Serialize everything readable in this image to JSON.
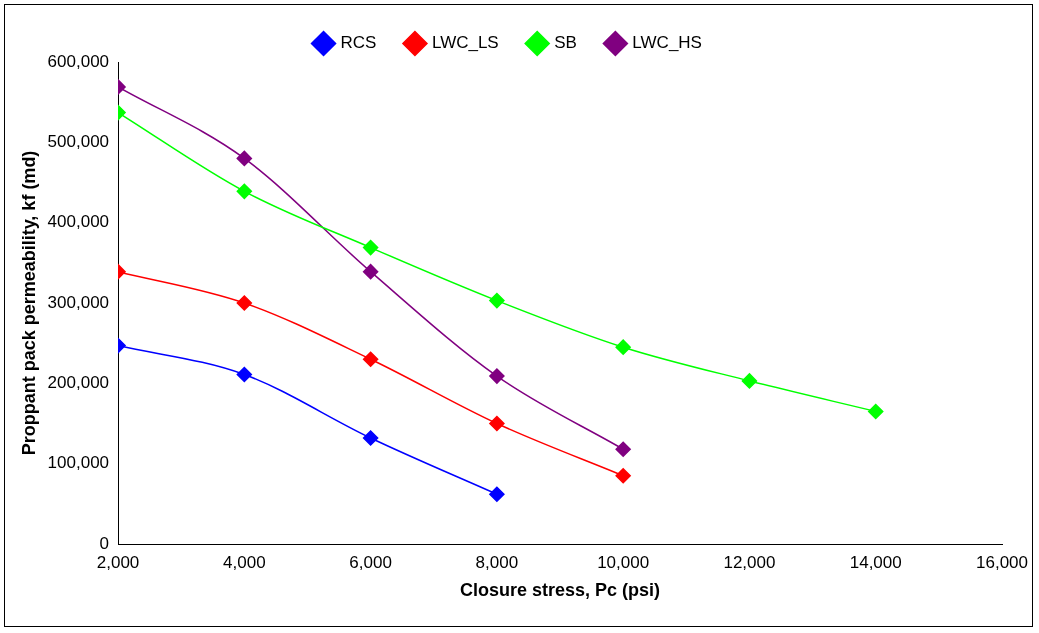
{
  "chart_data": {
    "type": "line",
    "xlabel": "Closure stress, Pc (psi)",
    "ylabel": "Proppant pack permeability, kf (md)",
    "xlim": [
      2000,
      16000
    ],
    "xticks": [
      {
        "value": 2000,
        "label": "2,000"
      },
      {
        "value": 4000,
        "label": "4,000"
      },
      {
        "value": 6000,
        "label": "6,000"
      },
      {
        "value": 8000,
        "label": "8,000"
      },
      {
        "value": 10000,
        "label": "10,000"
      },
      {
        "value": 12000,
        "label": "12,000"
      },
      {
        "value": 14000,
        "label": "14,000"
      },
      {
        "value": 16000,
        "label": "16,000"
      }
    ],
    "ylim": [
      0,
      600000
    ],
    "yticks": [
      0,
      {
        "value": 100000,
        "label": "100,000"
      },
      {
        "value": 200000,
        "label": "200,000"
      },
      {
        "value": 300000,
        "label": "300,000"
      },
      {
        "value": 400000,
        "label": "400,000"
      },
      {
        "value": 500000,
        "label": "500,000"
      },
      {
        "value": 600000,
        "label": "600,000"
      }
    ],
    "grid": false,
    "legend": "top",
    "marker": "diamond",
    "line_style": "solid",
    "series": [
      {
        "name": "RCS",
        "color": "#0000ff",
        "x": [
          2000,
          4000,
          6000,
          8000
        ],
        "values": [
          247000,
          211000,
          132000,
          62000
        ]
      },
      {
        "name": "LWC_LS",
        "color": "#ff0000",
        "x": [
          2000,
          4000,
          6000,
          8000,
          10000
        ],
        "values": [
          339000,
          300000,
          230000,
          150000,
          85000
        ]
      },
      {
        "name": "SB",
        "color": "#00ff00",
        "x": [
          2000,
          4000,
          6000,
          8000,
          10000,
          12000,
          14000
        ],
        "values": [
          537000,
          439000,
          369000,
          303000,
          245000,
          203000,
          165000
        ]
      },
      {
        "name": "LWC_HS",
        "color": "#800080",
        "x": [
          2000,
          4000,
          6000,
          8000,
          10000
        ],
        "values": [
          569000,
          480000,
          339000,
          209000,
          118000
        ]
      }
    ]
  }
}
